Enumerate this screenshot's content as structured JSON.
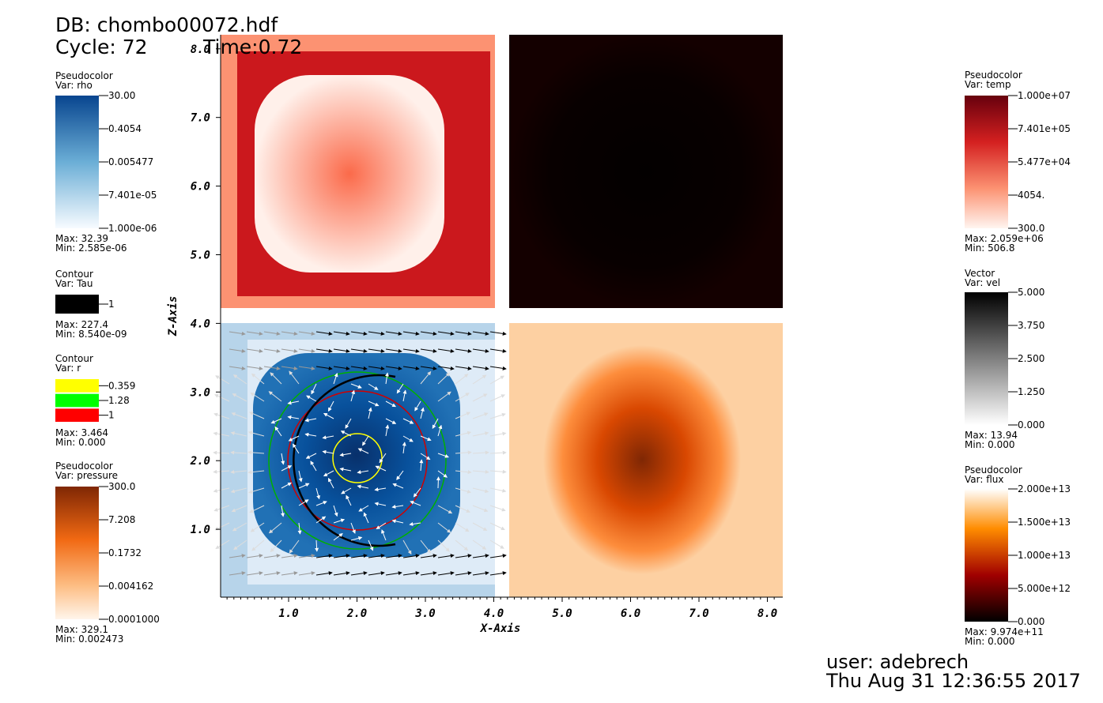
{
  "header": {
    "database": "DB: chombo00072.hdf",
    "cycle": "Cycle: 72",
    "time": "Time:0.72"
  },
  "legends": [
    {
      "plot": "Pseudocolor",
      "var": "Var: rho",
      "ticks": [
        "30.00",
        "0.4054",
        "0.005477",
        "7.401e-05",
        "1.000e-06"
      ],
      "max": "Max:  32.39",
      "min": "Min:  2.585e-06"
    },
    {
      "plot": "Contour",
      "var": "Var: Tau",
      "ticks": [
        "1"
      ],
      "colors": [
        "#000000"
      ],
      "max": "Max:  227.4",
      "min": "Min:  8.540e-09"
    },
    {
      "plot": "Contour",
      "var": "Var: r",
      "ticks": [
        "0.359",
        "1.28",
        "1"
      ],
      "colors": [
        "#ffff00",
        "#00ff00",
        "#ff0000"
      ],
      "max": "Max:  3.464",
      "min": "Min:  0.000"
    },
    {
      "plot": "Pseudocolor",
      "var": "Var: pressure",
      "ticks": [
        "300.0",
        "7.208",
        "0.1732",
        "0.004162",
        "0.0001000"
      ],
      "max": "Max:  329.1",
      "min": "Min:  0.002473"
    },
    {
      "plot": "Pseudocolor",
      "var": "Var: temp",
      "ticks": [
        "1.000e+07",
        "7.401e+05",
        "5.477e+04",
        "4054.",
        "300.0"
      ],
      "max": "Max:  2.059e+06",
      "min": "Min:  506.8"
    },
    {
      "plot": "Vector",
      "var": "Var: vel",
      "ticks": [
        "5.000",
        "3.750",
        "2.500",
        "1.250",
        "0.000"
      ],
      "max": "Max:  13.94",
      "min": "Min:  0.000"
    },
    {
      "plot": "Pseudocolor",
      "var": "Var: flux",
      "ticks": [
        "2.000e+13",
        "1.500e+13",
        "1.000e+13",
        "5.000e+12",
        "0.000"
      ],
      "max": "Max:  9.974e+11",
      "min": "Min:  0.000"
    }
  ],
  "axes": {
    "x_label": "X-Axis",
    "z_label": "Z-Axis",
    "x_ticks": [
      "1.0",
      "2.0",
      "3.0",
      "4.0",
      "5.0",
      "6.0",
      "7.0",
      "8.0"
    ],
    "z_ticks": [
      "1.0",
      "2.0",
      "3.0",
      "4.0",
      "5.0",
      "6.0",
      "7.0",
      "8.0"
    ]
  },
  "footer": {
    "user": "user: adebrech",
    "date": "Thu Aug 31 12:36:55 2017"
  }
}
